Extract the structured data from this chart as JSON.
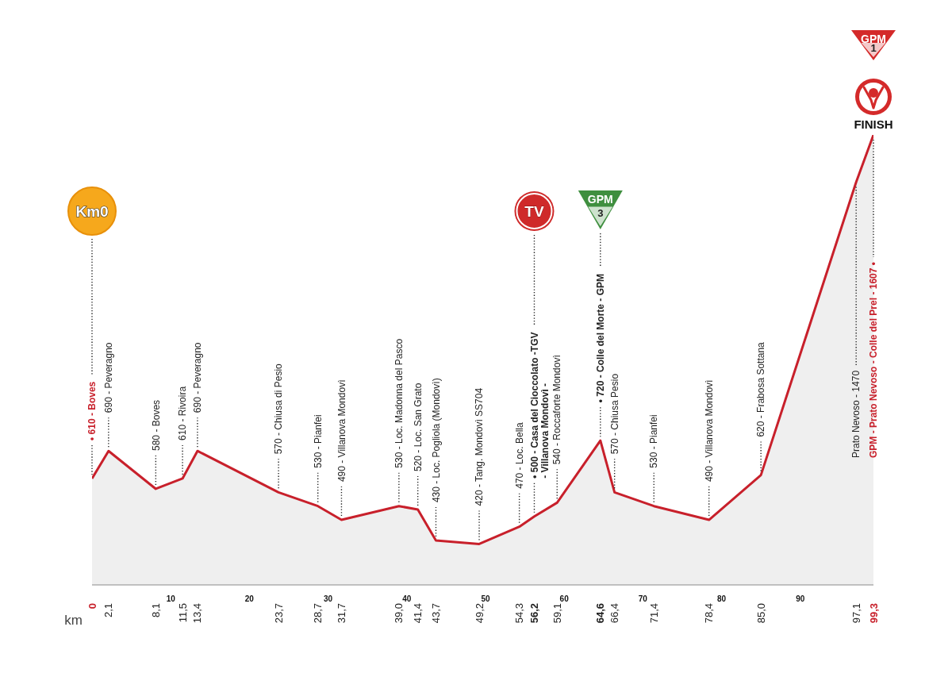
{
  "chart_data": {
    "type": "area",
    "x": [
      0,
      2.1,
      8.1,
      11.5,
      13.4,
      23.7,
      28.7,
      31.7,
      39.0,
      41.4,
      43.7,
      49.2,
      54.3,
      56.2,
      59.1,
      64.6,
      66.4,
      71.4,
      78.4,
      85.0,
      97.1,
      99.3
    ],
    "series": [
      {
        "color": "#c8202b",
        "values": [
          610,
          690,
          580,
          610,
          690,
          570,
          530,
          490,
          530,
          520,
          430,
          420,
          470,
          500,
          540,
          720,
          570,
          530,
          490,
          620,
          1470,
          1607
        ],
        "value_labels": [
          "• 610 - Boves",
          "690 - Peveragno",
          "580 - Boves",
          "610 - Rivoira",
          "690 - Peveragno",
          "570 - Chiusa di Pesio",
          "530 - Pianfei",
          "490 - Villanova Mondovì",
          "530 - Loc. Madonna del Pasco",
          "520 - Loc. San Grato",
          "430 - Loc. Pogliola (Mondovì)",
          "420 - Tang. Mondovì SS704",
          "470 - Loc. Bella",
          "• 500 - Casa del Cioccolato -TGV\n- Villanova Mondovì -",
          "540 - Roccaforte Mondovì",
          "• 720 - Colle del Morte - GPM",
          "570 - Chiusa Pesio",
          "530 - Pianfei",
          "490 - Villanova Mondovì",
          "620 - Frabosa Sottana",
          null,
          null
        ]
      }
    ],
    "xlabel": "km",
    "xlim": [
      0,
      99.3
    ],
    "xticks": [
      0,
      {
        "value": 2.1,
        "label": "2,1"
      },
      {
        "value": 8.1,
        "label": "8,1"
      },
      {
        "value": 11.5,
        "label": "11,5"
      },
      {
        "value": 13.4,
        "label": "13,4"
      },
      {
        "value": 23.7,
        "label": "23,7"
      },
      {
        "value": 28.7,
        "label": "28,7"
      },
      {
        "value": 31.7,
        "label": "31,7"
      },
      {
        "value": 39.0,
        "label": "39,0"
      },
      {
        "value": 41.4,
        "label": "41,4"
      },
      {
        "value": 43.7,
        "label": "43,7"
      },
      {
        "value": 49.2,
        "label": "49,2"
      },
      {
        "value": 54.3,
        "label": "54,3"
      },
      {
        "value": 56.2,
        "label": "56,2"
      },
      {
        "value": 59.1,
        "label": "59,1"
      },
      {
        "value": 64.6,
        "label": "64,6"
      },
      {
        "value": 66.4,
        "label": "66,4"
      },
      {
        "value": 71.4,
        "label": "71,4"
      },
      {
        "value": 78.4,
        "label": "78,4"
      },
      {
        "value": 85.0,
        "label": "85,0"
      },
      {
        "value": 97.1,
        "label": "97,1"
      },
      {
        "value": 99.3,
        "label": "99,3"
      }
    ],
    "x2lim": [
      0,
      99.3
    ],
    "x2ticks": [
      10,
      20,
      30,
      40,
      50,
      60,
      70,
      80,
      90
    ],
    "tick_labels": "x",
    "annotations": [
      "Km0",
      "TV",
      "GPM\n3",
      "Prato Nevoso - 1470",
      "GPM - Prato Nevoso - Colle del Prel - 1607 •",
      "GPM\n1",
      "FINISH"
    ]
  }
}
